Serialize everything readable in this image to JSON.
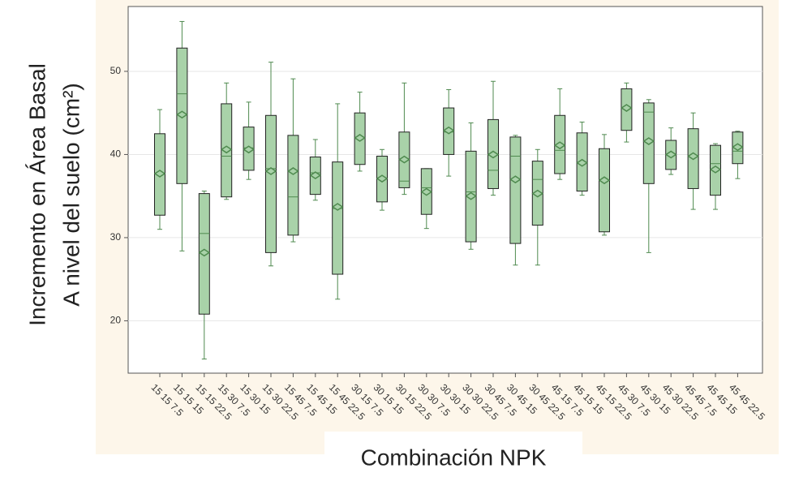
{
  "chart_data": {
    "type": "box",
    "y_label_lines": [
      "Incremento en Área Basal",
      "A nivel del suelo (cm²)"
    ],
    "x_label": "Combinación NPK",
    "categories": [
      "15 15 7.5",
      "15 15 15",
      "15 15 22.5",
      "15 30 7.5",
      "15 30 15",
      "15 30 22.5",
      "15 45 7.5",
      "15 45 15",
      "15 45 22.5",
      "30 15 7.5",
      "30 15 15",
      "30 15 22.5",
      "30 30 7.5",
      "30 30 15",
      "30 30 22.5",
      "30 45 7.5",
      "30 45 15",
      "30 45 22.5",
      "45 15 7.5",
      "45 15 15",
      "45 15 22.5",
      "45 30 7.5",
      "45 30 15",
      "45 30 22.5",
      "45 45 7.5",
      "45 45 15",
      "45 45 22.5"
    ],
    "min": [
      31.0,
      28.4,
      15.4,
      34.6,
      37.0,
      26.6,
      29.5,
      34.5,
      22.6,
      38.0,
      33.3,
      35.2,
      31.1,
      37.4,
      28.6,
      35.1,
      26.7,
      26.7,
      37.0,
      35.1,
      30.3,
      41.5,
      28.2,
      37.6,
      33.4,
      33.4,
      37.1
    ],
    "q1": [
      32.7,
      36.5,
      20.8,
      34.9,
      38.1,
      28.2,
      30.3,
      35.2,
      25.6,
      38.8,
      34.3,
      36.0,
      32.8,
      40.0,
      29.5,
      35.9,
      29.3,
      31.5,
      37.7,
      35.6,
      30.7,
      42.9,
      36.5,
      38.2,
      35.9,
      35.1,
      38.9
    ],
    "median": [
      37.7,
      47.3,
      30.5,
      39.8,
      40.8,
      38.3,
      34.9,
      37.8,
      33.5,
      42.0,
      37.1,
      36.8,
      36.0,
      42.7,
      35.5,
      38.1,
      39.8,
      37.0,
      40.5,
      39.0,
      36.9,
      45.6,
      45.1,
      40.0,
      39.8,
      38.9,
      40.4
    ],
    "q3": [
      42.5,
      52.8,
      35.3,
      46.1,
      43.3,
      44.7,
      42.3,
      39.7,
      39.1,
      45.0,
      39.8,
      42.7,
      38.3,
      45.6,
      40.4,
      44.2,
      42.1,
      39.2,
      44.7,
      42.6,
      40.7,
      47.9,
      46.2,
      41.7,
      43.1,
      41.1,
      42.7
    ],
    "max": [
      45.4,
      56.0,
      35.6,
      48.6,
      46.3,
      51.1,
      49.1,
      41.8,
      46.1,
      47.5,
      40.6,
      48.6,
      38.3,
      47.8,
      43.8,
      48.8,
      42.3,
      40.6,
      47.9,
      43.9,
      42.4,
      48.6,
      46.6,
      43.2,
      45.0,
      41.3,
      42.8
    ],
    "mean": [
      37.7,
      44.8,
      28.2,
      40.6,
      40.6,
      38.0,
      38.0,
      37.5,
      33.7,
      42.0,
      37.1,
      39.4,
      35.5,
      42.9,
      35.0,
      40.0,
      37.0,
      35.3,
      41.1,
      39.0,
      36.9,
      45.6,
      41.6,
      40.0,
      39.8,
      38.2,
      40.9
    ],
    "ylim": [
      13.7,
      57.8
    ],
    "yticks": [
      20,
      30,
      40,
      50
    ],
    "grid": true,
    "box_color": "#a9d2a9",
    "whisker_color": "#4f8a4f"
  }
}
